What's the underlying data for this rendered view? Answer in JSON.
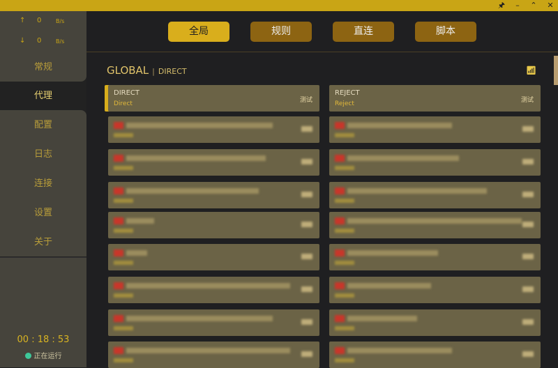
{
  "window": {
    "controls": [
      {
        "icon": "pin-icon",
        "glyph": "🖈"
      },
      {
        "icon": "minimize-icon",
        "glyph": "–"
      },
      {
        "icon": "maximize-icon",
        "glyph": "⌃"
      },
      {
        "icon": "close-icon",
        "glyph": "✕"
      }
    ]
  },
  "traffic": {
    "up": {
      "arrow": "↑",
      "value": "0",
      "unit": "B/s"
    },
    "down": {
      "arrow": "↓",
      "value": "0",
      "unit": "B/s"
    }
  },
  "sidebar": {
    "items": [
      {
        "label": "常规"
      },
      {
        "label": "代理",
        "active": true
      },
      {
        "label": "配置"
      },
      {
        "label": "日志"
      },
      {
        "label": "连接"
      },
      {
        "label": "设置"
      },
      {
        "label": "关于"
      }
    ]
  },
  "footer": {
    "uptime": "00 : 18 : 53",
    "status": "正在运行",
    "status_color": "#3ec99a"
  },
  "modes": [
    {
      "label": "全局",
      "active": true
    },
    {
      "label": "规则"
    },
    {
      "label": "直连"
    },
    {
      "label": "脚本"
    }
  ],
  "group": {
    "name": "GLOBAL",
    "selected": "DIRECT"
  },
  "proxies": [
    {
      "name": "DIRECT",
      "type": "Direct",
      "test": "测试",
      "selected": true
    },
    {
      "name": "REJECT",
      "type": "Reject",
      "test": "测试"
    }
  ],
  "colors": {
    "accent": "#d9ae1c",
    "titlebar": "#c9a515",
    "card": "#6b6346",
    "sidebar": "#46443c",
    "background": "#1f1f21"
  }
}
